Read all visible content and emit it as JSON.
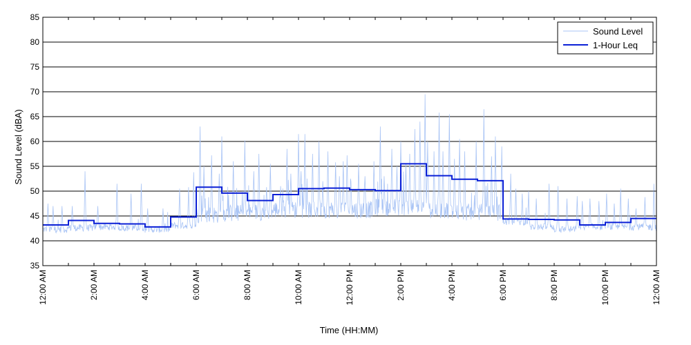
{
  "chart_data": {
    "type": "line",
    "title": "",
    "xlabel": "Time (HH:MM)",
    "ylabel": "Sound Level (dBA)",
    "xlim": [
      0,
      24
    ],
    "ylim": [
      35,
      85
    ],
    "yticks": [
      35,
      40,
      45,
      50,
      55,
      60,
      65,
      70,
      75,
      80,
      85
    ],
    "xticks": [
      0,
      2,
      4,
      6,
      8,
      10,
      12,
      14,
      16,
      18,
      20,
      22,
      24
    ],
    "xtick_labels": [
      "12:00 AM",
      "2:00 AM",
      "4:00 AM",
      "6:00 AM",
      "8:00 AM",
      "10:00 AM",
      "12:00 PM",
      "2:00 PM",
      "4:00 PM",
      "6:00 PM",
      "8:00 PM",
      "10:00 PM",
      "12:00 AM"
    ],
    "grid": "horizontal",
    "legend_position": "top-right",
    "series": [
      {
        "name": "Sound Level",
        "style": "thin-line",
        "color": "#a9c4f5",
        "baseline_hourly": [
          42.0,
          42.3,
          42.5,
          42.3,
          42.0,
          42.8,
          44.5,
          44.8,
          45.0,
          45.5,
          45.5,
          45.5,
          45.5,
          46.0,
          46.0,
          45.5,
          45.0,
          45.0,
          43.5,
          42.5,
          42.0,
          42.5,
          42.5,
          42.5
        ],
        "peaks": [
          [
            0.2,
            47.5
          ],
          [
            0.4,
            47.0
          ],
          [
            0.75,
            47.0
          ],
          [
            1.15,
            47.0
          ],
          [
            1.65,
            54.0
          ],
          [
            2.15,
            47.0
          ],
          [
            2.9,
            51.5
          ],
          [
            3.45,
            49.5
          ],
          [
            3.85,
            51.5
          ],
          [
            4.1,
            46.5
          ],
          [
            4.7,
            46.5
          ],
          [
            5.35,
            50.5
          ],
          [
            5.7,
            50.8
          ],
          [
            5.9,
            53.8
          ],
          [
            6.15,
            63.0
          ],
          [
            6.3,
            55.0
          ],
          [
            6.6,
            57.2
          ],
          [
            6.9,
            53.5
          ],
          [
            7.0,
            61.0
          ],
          [
            7.45,
            56.0
          ],
          [
            7.9,
            60.2
          ],
          [
            8.25,
            54.0
          ],
          [
            8.45,
            57.5
          ],
          [
            8.75,
            50.8
          ],
          [
            8.9,
            55.5
          ],
          [
            9.3,
            51.0
          ],
          [
            9.55,
            58.5
          ],
          [
            9.7,
            53.5
          ],
          [
            10.0,
            61.5
          ],
          [
            10.1,
            54.0
          ],
          [
            10.25,
            61.5
          ],
          [
            10.55,
            57.5
          ],
          [
            10.8,
            60.0
          ],
          [
            10.95,
            52.0
          ],
          [
            11.15,
            58.0
          ],
          [
            11.45,
            55.8
          ],
          [
            11.6,
            53.0
          ],
          [
            11.75,
            56.0
          ],
          [
            11.9,
            57.2
          ],
          [
            12.05,
            52.0
          ],
          [
            12.35,
            55.5
          ],
          [
            12.6,
            53.0
          ],
          [
            12.95,
            56.0
          ],
          [
            13.2,
            63.0
          ],
          [
            13.35,
            53.0
          ],
          [
            13.65,
            58.5
          ],
          [
            13.85,
            55.0
          ],
          [
            14.0,
            60.0
          ],
          [
            14.2,
            55.5
          ],
          [
            14.35,
            57.5
          ],
          [
            14.55,
            62.5
          ],
          [
            14.75,
            64.0
          ],
          [
            14.95,
            69.5
          ],
          [
            15.05,
            60.0
          ],
          [
            15.3,
            58.0
          ],
          [
            15.5,
            65.8
          ],
          [
            15.65,
            58.0
          ],
          [
            15.9,
            65.5
          ],
          [
            16.1,
            56.5
          ],
          [
            16.3,
            60.5
          ],
          [
            16.5,
            58.0
          ],
          [
            16.95,
            60.0
          ],
          [
            17.25,
            66.5
          ],
          [
            17.55,
            57.0
          ],
          [
            17.7,
            61.0
          ],
          [
            17.95,
            59.0
          ],
          [
            18.3,
            53.5
          ],
          [
            18.5,
            50.5
          ],
          [
            18.75,
            49.5
          ],
          [
            19.0,
            50.0
          ],
          [
            19.3,
            48.5
          ],
          [
            19.8,
            51.5
          ],
          [
            20.15,
            51.0
          ],
          [
            20.5,
            48.5
          ],
          [
            20.9,
            49.0
          ],
          [
            21.1,
            48.0
          ],
          [
            21.4,
            48.5
          ],
          [
            21.75,
            48.0
          ],
          [
            22.05,
            49.5
          ],
          [
            22.35,
            47.5
          ],
          [
            22.6,
            50.5
          ],
          [
            22.9,
            48.5
          ],
          [
            23.2,
            46.5
          ],
          [
            23.55,
            48.8
          ],
          [
            23.9,
            51.5
          ]
        ]
      },
      {
        "name": "1-Hour Leq",
        "style": "step",
        "color": "#0a1fd6",
        "x_hour_start": [
          0,
          1,
          2,
          3,
          4,
          5,
          6,
          7,
          8,
          9,
          10,
          11,
          12,
          13,
          14,
          15,
          16,
          17,
          18,
          19,
          20,
          21,
          22,
          23
        ],
        "values": [
          43.2,
          44.1,
          43.5,
          43.4,
          42.8,
          44.8,
          50.8,
          49.6,
          48.1,
          49.3,
          50.5,
          50.6,
          50.3,
          50.1,
          55.5,
          53.1,
          52.4,
          52.1,
          44.4,
          44.3,
          44.2,
          43.2,
          43.7,
          44.5
        ]
      }
    ]
  }
}
